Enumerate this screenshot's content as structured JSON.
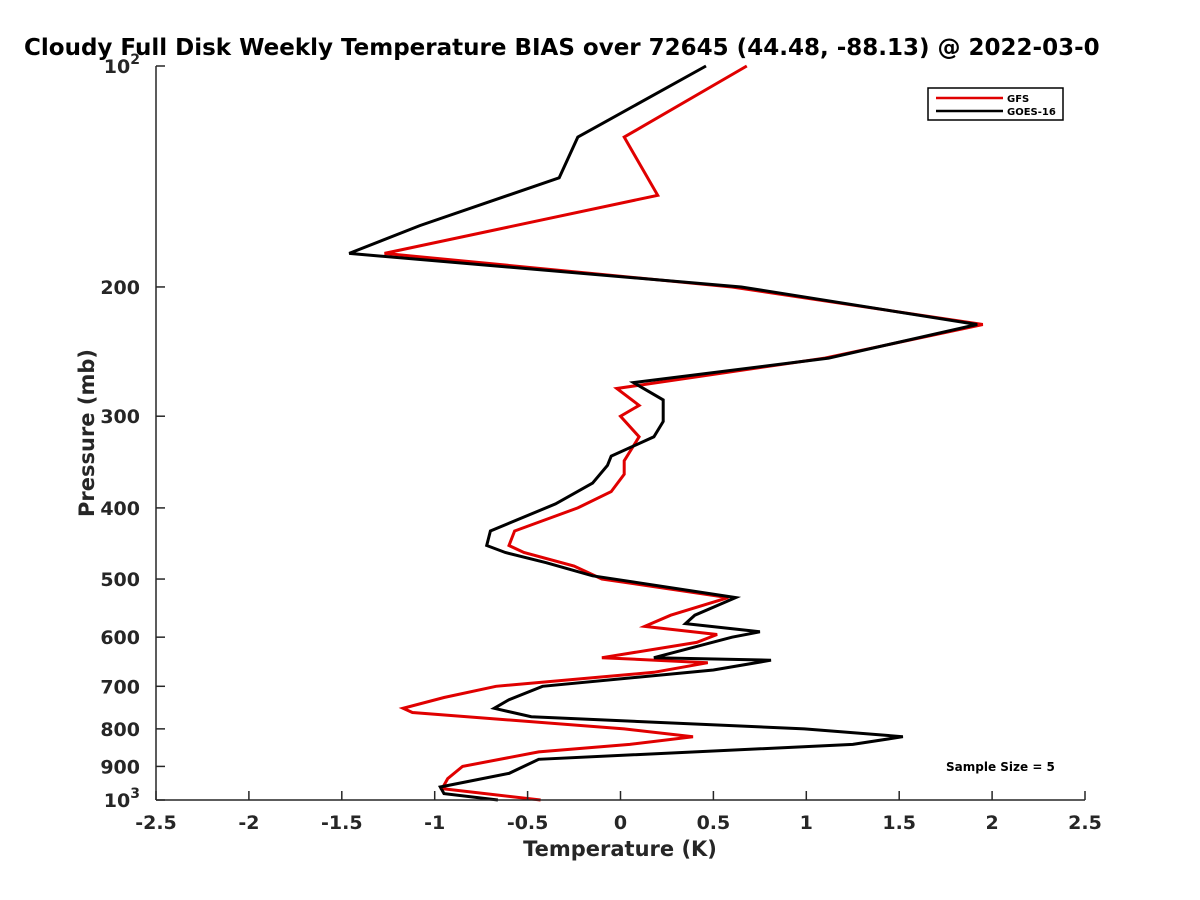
{
  "chart_data": {
    "type": "line",
    "title": "Cloudy Full Disk Weekly Temperature BIAS over 72645 (44.48, -88.13) @ 2022-03-0",
    "xlabel": "Temperature (K)",
    "ylabel": "Pressure (mb)",
    "xlim": [
      -2.5,
      2.5
    ],
    "ylim": [
      100,
      1000
    ],
    "y_scale": "log",
    "y_reversed": true,
    "x_ticks": [
      "-2.5",
      "-2",
      "-1.5",
      "-1",
      "-0.5",
      "0",
      "0.5",
      "1",
      "1.5",
      "2",
      "2.5"
    ],
    "x_tick_values": [
      -2.5,
      -2,
      -1.5,
      -1,
      -0.5,
      0,
      0.5,
      1,
      1.5,
      2,
      2.5
    ],
    "y_ticks": [
      {
        "value": 100,
        "base": "10",
        "exp": "2"
      },
      {
        "value": 200,
        "label": "200"
      },
      {
        "value": 300,
        "label": "300"
      },
      {
        "value": 400,
        "label": "400"
      },
      {
        "value": 500,
        "label": "500"
      },
      {
        "value": 600,
        "label": "600"
      },
      {
        "value": 700,
        "label": "700"
      },
      {
        "value": 800,
        "label": "800"
      },
      {
        "value": 900,
        "label": "900"
      },
      {
        "value": 1000,
        "base": "10",
        "exp": "3"
      }
    ],
    "annotation": "Sample Size = 5",
    "legend_position": "top-right",
    "grid": false,
    "series": [
      {
        "name": "GFS",
        "color": "#e00000",
        "points": [
          [
            0.68,
            100
          ],
          [
            0.02,
            125
          ],
          [
            0.2,
            150
          ],
          [
            -1.27,
            180
          ],
          [
            0.6,
            200
          ],
          [
            1.95,
            225
          ],
          [
            1.1,
            250
          ],
          [
            -0.02,
            275
          ],
          [
            0.1,
            290
          ],
          [
            0,
            300
          ],
          [
            0.1,
            320
          ],
          [
            0.02,
            345
          ],
          [
            0.02,
            360
          ],
          [
            -0.05,
            380
          ],
          [
            -0.23,
            400
          ],
          [
            -0.57,
            430
          ],
          [
            -0.6,
            450
          ],
          [
            -0.52,
            460
          ],
          [
            -0.25,
            480
          ],
          [
            -0.1,
            500
          ],
          [
            0.58,
            530
          ],
          [
            0.27,
            560
          ],
          [
            0.13,
            580
          ],
          [
            0.52,
            595
          ],
          [
            0.41,
            610
          ],
          [
            -0.1,
            640
          ],
          [
            0.47,
            650
          ],
          [
            0.18,
            670
          ],
          [
            -0.67,
            700
          ],
          [
            -0.95,
            725
          ],
          [
            -1.17,
            750
          ],
          [
            -1.12,
            760
          ],
          [
            0.02,
            800
          ],
          [
            0.39,
            820
          ],
          [
            0.05,
            840
          ],
          [
            -0.44,
            860
          ],
          [
            -0.85,
            900
          ],
          [
            -0.93,
            935
          ],
          [
            -0.96,
            965
          ],
          [
            -0.43,
            1000
          ]
        ]
      },
      {
        "name": "GOES-16",
        "color": "#000000",
        "points": [
          [
            0.46,
            100
          ],
          [
            -0.23,
            125
          ],
          [
            -0.33,
            142
          ],
          [
            -1.08,
            165
          ],
          [
            -1.46,
            180
          ],
          [
            0.65,
            200
          ],
          [
            1.92,
            225
          ],
          [
            1.12,
            250
          ],
          [
            0.07,
            270
          ],
          [
            0.23,
            285
          ],
          [
            0.23,
            305
          ],
          [
            0.18,
            320
          ],
          [
            -0.05,
            340
          ],
          [
            -0.07,
            350
          ],
          [
            -0.15,
            370
          ],
          [
            -0.35,
            395
          ],
          [
            -0.7,
            430
          ],
          [
            -0.72,
            450
          ],
          [
            -0.62,
            460
          ],
          [
            -0.4,
            475
          ],
          [
            -0.15,
            495
          ],
          [
            0.62,
            530
          ],
          [
            0.4,
            560
          ],
          [
            0.35,
            575
          ],
          [
            0.75,
            590
          ],
          [
            0.6,
            600
          ],
          [
            0.18,
            640
          ],
          [
            0.81,
            645
          ],
          [
            0.5,
            665
          ],
          [
            -0.42,
            700
          ],
          [
            -0.6,
            730
          ],
          [
            -0.68,
            750
          ],
          [
            -0.48,
            770
          ],
          [
            0.99,
            800
          ],
          [
            1.52,
            820
          ],
          [
            1.25,
            840
          ],
          [
            -0.44,
            880
          ],
          [
            -0.6,
            920
          ],
          [
            -0.97,
            960
          ],
          [
            -0.95,
            980
          ],
          [
            -0.66,
            1000
          ]
        ]
      }
    ]
  }
}
